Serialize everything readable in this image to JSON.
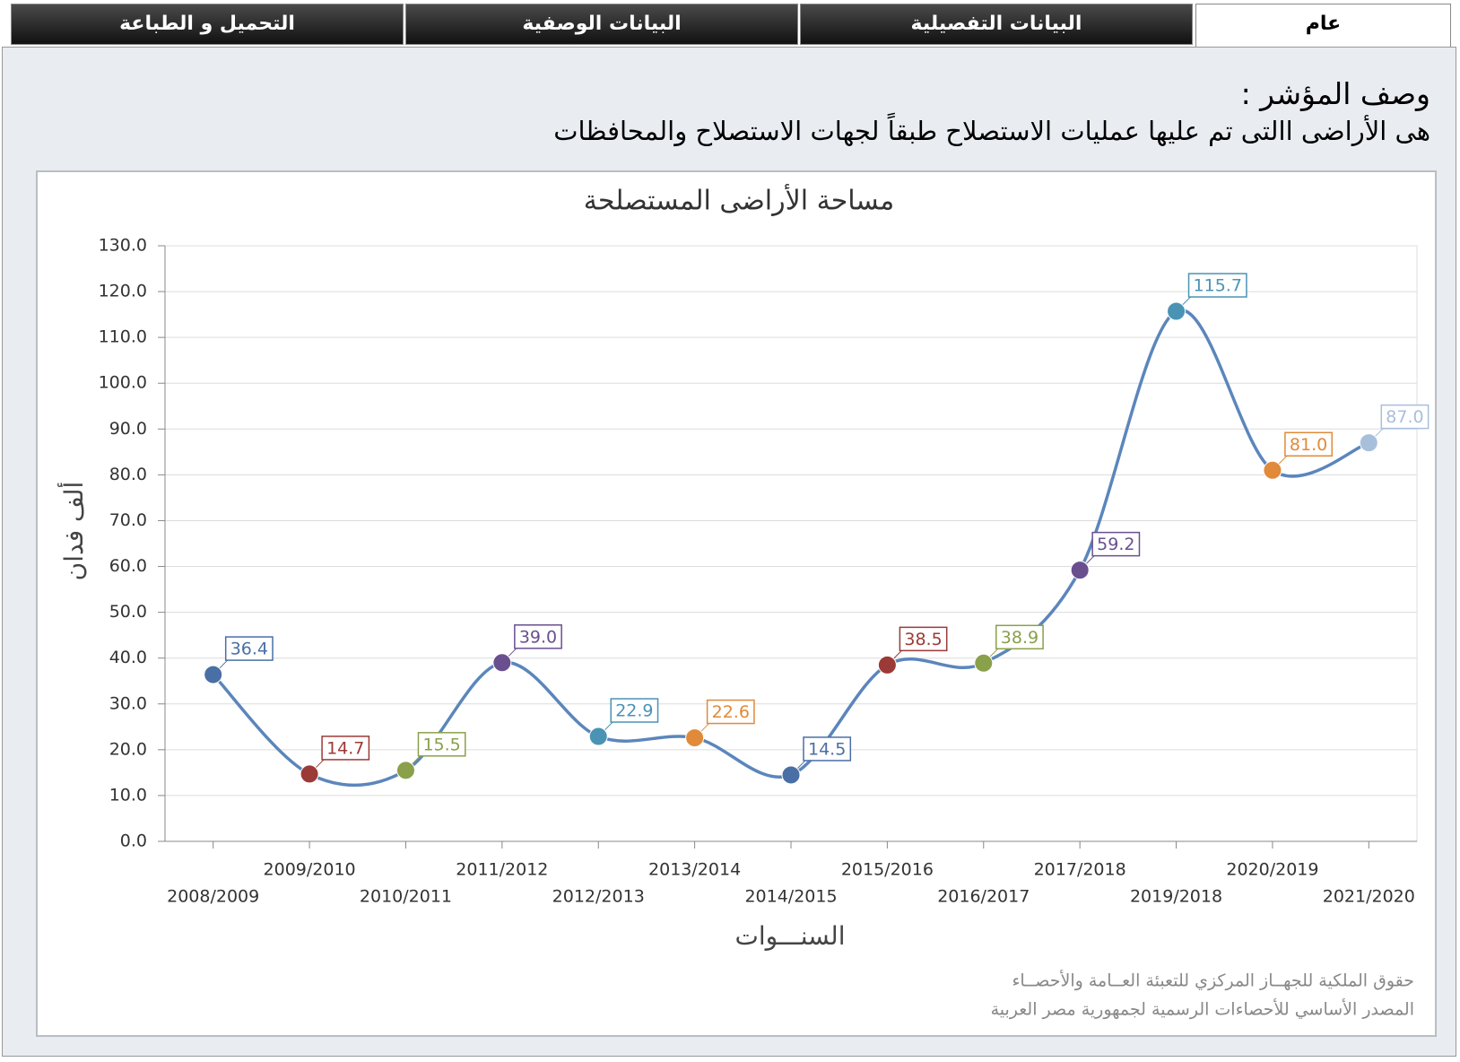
{
  "tabs": [
    "عام",
    "البيانات التفصيلية",
    "البيانات الوصفية",
    "التحميل و الطباعة"
  ],
  "description": {
    "heading": "وصف المؤشر :",
    "text": "هى الأراضى االتى تم عليها عمليات الاستصلاح طبقاً لجهات الاستصلاح والمحافظات"
  },
  "chart_data": {
    "type": "line",
    "title": "مساحة الأراضى المستصلحة",
    "x_label": "السنـــوات",
    "y_label": "ألف فدان",
    "categories": [
      "2008/2009",
      "2009/2010",
      "2010/2011",
      "2011/2012",
      "2012/2013",
      "2013/2014",
      "2014/2015",
      "2015/2016",
      "2016/2017",
      "2017/2018",
      "2019/2018",
      "2020/2019",
      "2021/2020"
    ],
    "values": [
      36.4,
      14.7,
      15.5,
      39.0,
      22.9,
      22.6,
      14.5,
      38.5,
      38.9,
      59.2,
      115.7,
      81.0,
      87.0
    ],
    "value_labels": [
      "36.4",
      "14.7",
      "15.5",
      "39.0",
      "22.9",
      "22.6",
      "14.5",
      "38.5",
      "38.9",
      "59.2",
      "115.7",
      "81.0",
      "87.0"
    ],
    "color": "#5b86bc",
    "marker_colors": [
      "#4a6fa5",
      "#9b3a36",
      "#8aa04a",
      "#6a4f8f",
      "#4a93b5",
      "#e08a3a",
      "#4a6fa5",
      "#9b3a36",
      "#8aa04a",
      "#6a4f8f",
      "#4a93b5",
      "#e08a3a",
      "#a8bfdc"
    ],
    "ylim": [
      0,
      130
    ],
    "yticks": [
      {
        "value": 0,
        "label": "0.0"
      },
      {
        "value": 10,
        "label": "10.0"
      },
      {
        "value": 20,
        "label": "20.0"
      },
      {
        "value": 30,
        "label": "30.0"
      },
      {
        "value": 40,
        "label": "40.0"
      },
      {
        "value": 50,
        "label": "50.0"
      },
      {
        "value": 60,
        "label": "60.0"
      },
      {
        "value": 70,
        "label": "70.0"
      },
      {
        "value": 80,
        "label": "80.0"
      },
      {
        "value": 90,
        "label": "90.0"
      },
      {
        "value": 100,
        "label": "100.0"
      },
      {
        "value": 110,
        "label": "110.0"
      },
      {
        "value": 120,
        "label": "120.0"
      },
      {
        "value": 130,
        "label": "130.0"
      }
    ],
    "grid": true,
    "credits": [
      "حقوق الملكية للجهــاز المركزي للتعبئة العــامة والأحصــاء",
      "المصدر الأساسي للأحصاءات الرسمية لجمهورية مصر العربية"
    ]
  }
}
